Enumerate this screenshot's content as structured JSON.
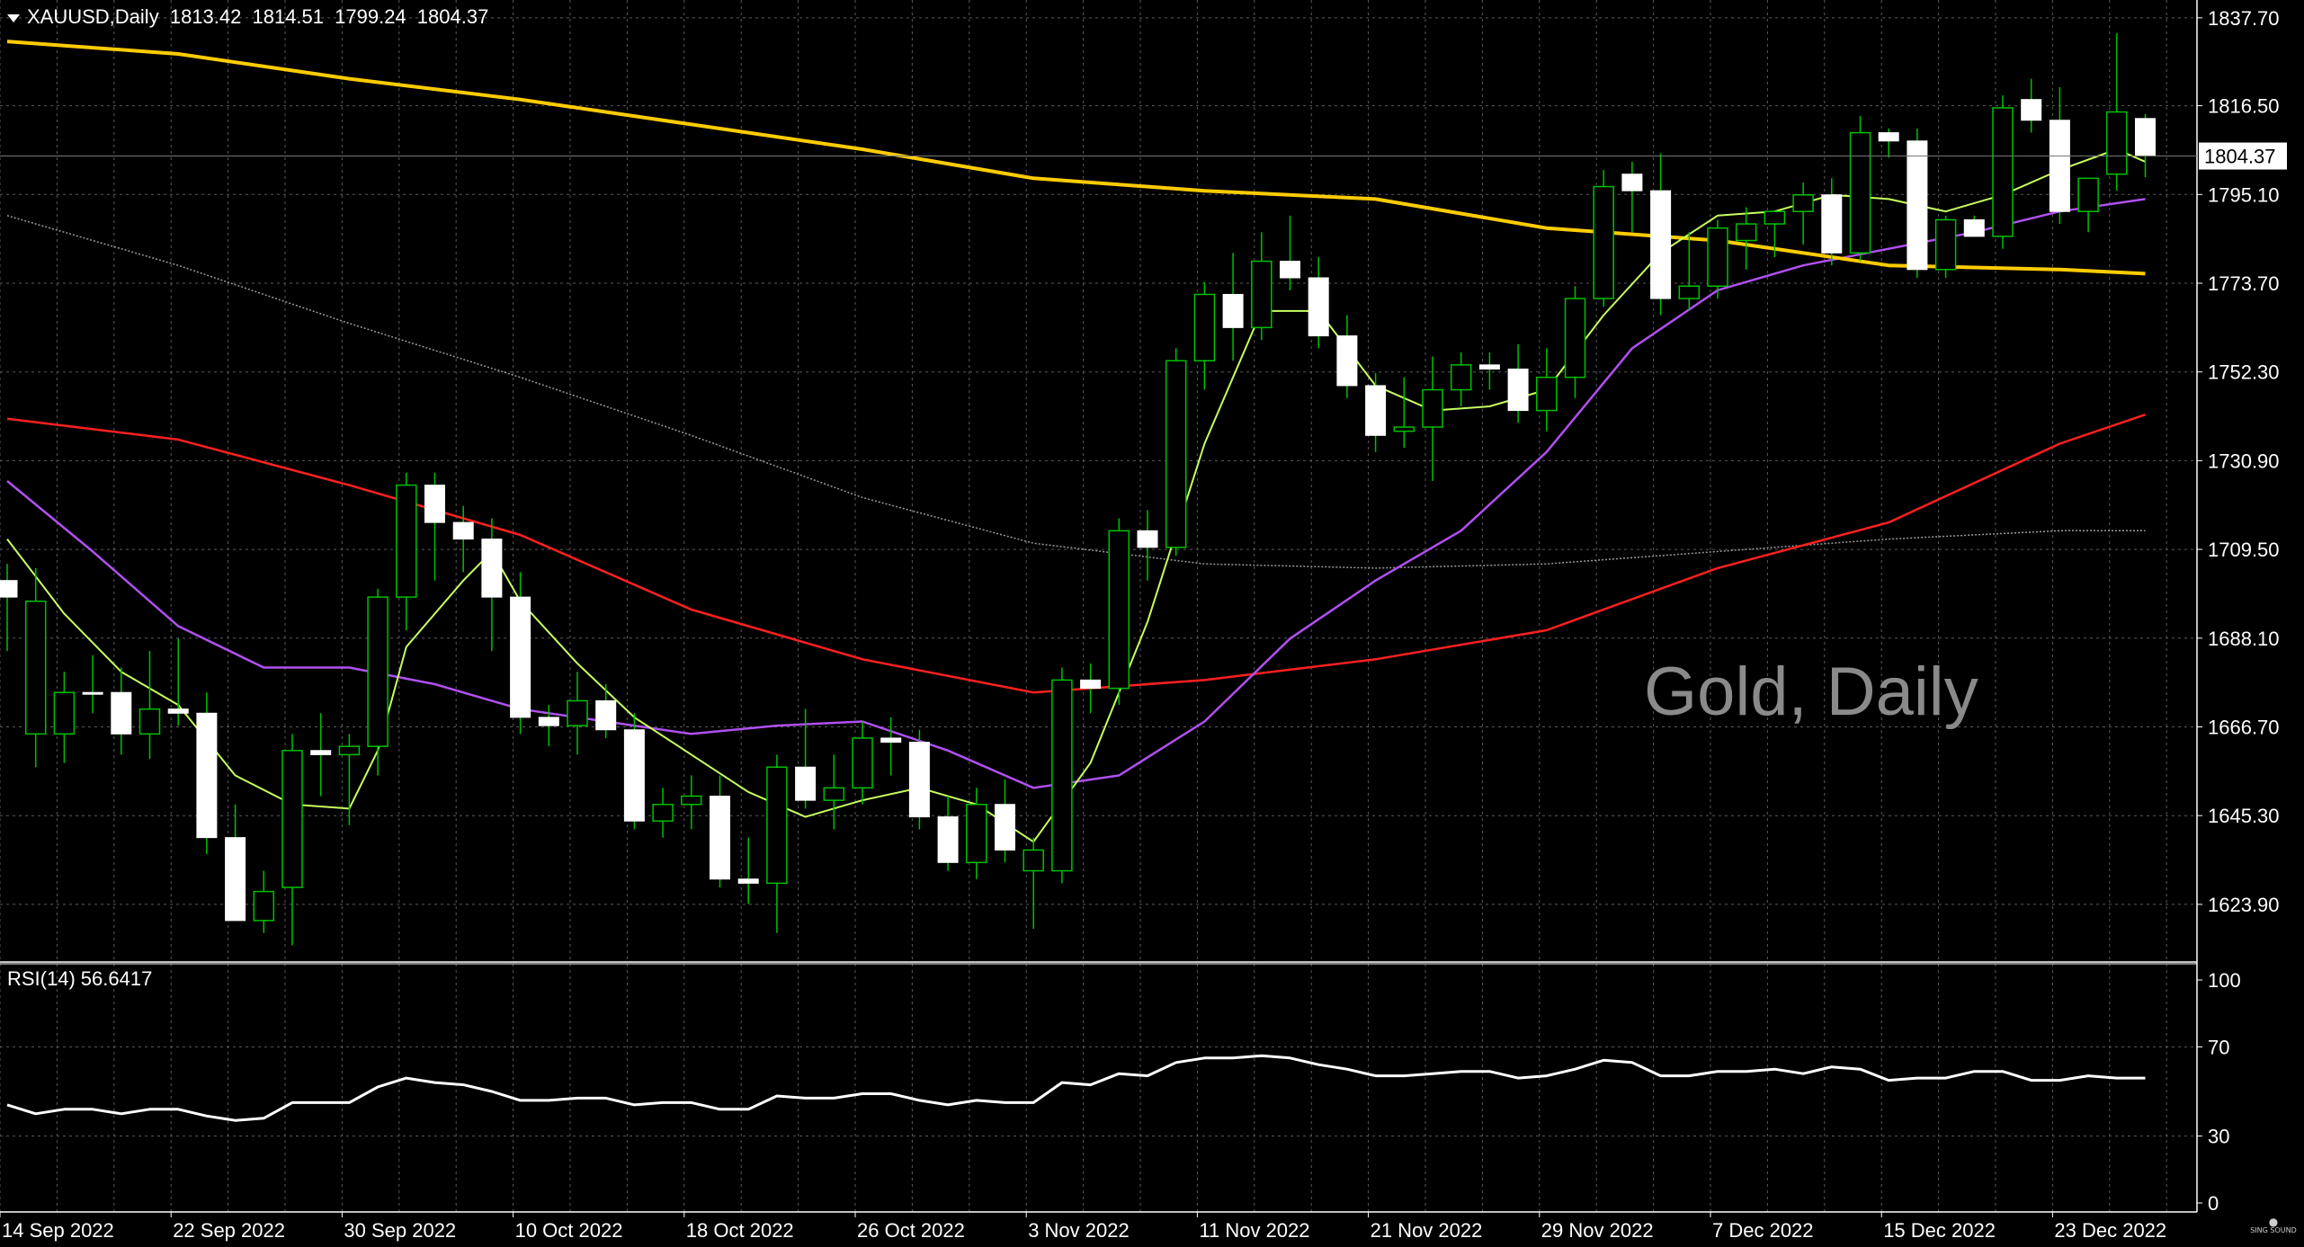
{
  "header": {
    "symbol": "XAUUSD,Daily",
    "open": "1813.42",
    "high": "1814.51",
    "low": "1799.24",
    "close": "1804.37"
  },
  "watermark": "Gold, Daily",
  "rsi": {
    "label": "RSI(14)",
    "value": "56.6417"
  },
  "logo_text": "SING SOUND",
  "colors": {
    "background": "#000000",
    "grid": "#5a5a5a",
    "bull_wick": "#00c000",
    "bear_body": "#ffffff",
    "ma_fast": "#c8ff60",
    "ma_20": "#b050f0",
    "ma_50": "#ff2020",
    "ma_100": "#9a9a9a",
    "ma_200": "#ffcc00",
    "rsi_line": "#ffffff"
  },
  "chart_data": [
    {
      "type": "candlestick",
      "title": "XAUUSD,Daily",
      "y_ticks": [
        1837.7,
        1816.5,
        1795.1,
        1773.7,
        1752.3,
        1730.9,
        1709.5,
        1688.1,
        1666.7,
        1645.3,
        1623.9
      ],
      "ylim": [
        1610.0,
        1842.0
      ],
      "current_price": "1804.37",
      "x_labels": [
        "14 Sep 2022",
        "22 Sep 2022",
        "30 Sep 2022",
        "10 Oct 2022",
        "18 Oct 2022",
        "26 Oct 2022",
        "3 Nov 2022",
        "11 Nov 2022",
        "21 Nov 2022",
        "29 Nov 2022",
        "7 Dec 2022",
        "15 Dec 2022",
        "23 Dec 2022"
      ],
      "x_label_index": [
        0,
        6,
        12,
        18,
        24,
        30,
        36,
        42,
        48,
        54,
        60,
        66,
        72
      ],
      "grid": true,
      "ohlc": [
        [
          1702.0,
          1706.0,
          1685.0,
          1698.0
        ],
        [
          1697.0,
          1705.0,
          1657.0,
          1665.0
        ],
        [
          1665.0,
          1680.0,
          1658.0,
          1675.0
        ],
        [
          1675.0,
          1684.0,
          1670.0,
          1675.0
        ],
        [
          1675.0,
          1681.0,
          1660.0,
          1665.0
        ],
        [
          1665.0,
          1685.0,
          1659.0,
          1671.0
        ],
        [
          1671.0,
          1688.0,
          1667.0,
          1670.0
        ],
        [
          1670.0,
          1675.0,
          1636.0,
          1640.0
        ],
        [
          1640.0,
          1648.0,
          1620.0,
          1620.0
        ],
        [
          1620.0,
          1632.0,
          1617.0,
          1627.0
        ],
        [
          1628.0,
          1665.0,
          1614.0,
          1661.0
        ],
        [
          1661.0,
          1670.0,
          1650.0,
          1660.0
        ],
        [
          1660.0,
          1665.0,
          1643.0,
          1662.0
        ],
        [
          1662.0,
          1700.0,
          1655.0,
          1698.0
        ],
        [
          1698.0,
          1728.0,
          1690.0,
          1725.0
        ],
        [
          1725.0,
          1728.0,
          1702.0,
          1716.0
        ],
        [
          1716.0,
          1720.0,
          1704.0,
          1712.0
        ],
        [
          1712.0,
          1717.0,
          1685.0,
          1698.0
        ],
        [
          1698.0,
          1704.0,
          1665.0,
          1669.0
        ],
        [
          1669.0,
          1672.0,
          1662.0,
          1667.0
        ],
        [
          1667.0,
          1680.0,
          1660.0,
          1673.0
        ],
        [
          1673.0,
          1677.0,
          1664.0,
          1666.0
        ],
        [
          1666.0,
          1670.0,
          1642.0,
          1644.0
        ],
        [
          1644.0,
          1652.0,
          1640.0,
          1648.0
        ],
        [
          1648.0,
          1655.0,
          1642.0,
          1650.0
        ],
        [
          1650.0,
          1655.0,
          1628.0,
          1630.0
        ],
        [
          1630.0,
          1640.0,
          1624.0,
          1629.0
        ],
        [
          1629.0,
          1660.0,
          1617.0,
          1657.0
        ],
        [
          1657.0,
          1671.0,
          1647.0,
          1649.0
        ],
        [
          1649.0,
          1660.0,
          1642.0,
          1652.0
        ],
        [
          1652.0,
          1668.0,
          1648.0,
          1664.0
        ],
        [
          1664.0,
          1669.0,
          1655.0,
          1663.0
        ],
        [
          1663.0,
          1666.0,
          1642.0,
          1645.0
        ],
        [
          1645.0,
          1650.0,
          1632.0,
          1634.0
        ],
        [
          1634.0,
          1652.0,
          1630.0,
          1648.0
        ],
        [
          1648.0,
          1654.0,
          1634.0,
          1637.0
        ],
        [
          1637.0,
          1640.0,
          1618.0,
          1632.0
        ],
        [
          1632.0,
          1681.0,
          1629.0,
          1678.0
        ],
        [
          1678.0,
          1682.0,
          1670.0,
          1676.0
        ],
        [
          1676.0,
          1717.0,
          1672.0,
          1714.0
        ],
        [
          1714.0,
          1719.0,
          1702.0,
          1710.0
        ],
        [
          1710.0,
          1758.0,
          1708.0,
          1755.0
        ],
        [
          1755.0,
          1774.0,
          1748.0,
          1771.0
        ],
        [
          1771.0,
          1781.0,
          1755.0,
          1763.0
        ],
        [
          1763.0,
          1786.0,
          1760.0,
          1779.0
        ],
        [
          1779.0,
          1790.0,
          1772.0,
          1775.0
        ],
        [
          1775.0,
          1780.0,
          1758.0,
          1761.0
        ],
        [
          1761.0,
          1766.0,
          1746.0,
          1749.0
        ],
        [
          1749.0,
          1752.0,
          1733.0,
          1737.0
        ],
        [
          1738.0,
          1751.0,
          1734.0,
          1739.0
        ],
        [
          1739.0,
          1756.0,
          1726.0,
          1748.0
        ],
        [
          1748.0,
          1757.0,
          1744.0,
          1754.0
        ],
        [
          1754.0,
          1757.0,
          1748.0,
          1753.0
        ],
        [
          1753.0,
          1759.0,
          1740.0,
          1743.0
        ],
        [
          1743.0,
          1758.0,
          1738.0,
          1751.0
        ],
        [
          1751.0,
          1773.0,
          1746.0,
          1770.0
        ],
        [
          1770.0,
          1801.0,
          1768.0,
          1797.0
        ],
        [
          1800.0,
          1803.0,
          1786.0,
          1796.0
        ],
        [
          1796.0,
          1805.0,
          1766.0,
          1770.0
        ],
        [
          1770.0,
          1786.0,
          1767.0,
          1773.0
        ],
        [
          1773.0,
          1789.0,
          1770.0,
          1787.0
        ],
        [
          1784.0,
          1792.0,
          1777.0,
          1788.0
        ],
        [
          1788.0,
          1791.0,
          1780.0,
          1791.0
        ],
        [
          1791.0,
          1798.0,
          1783.0,
          1795.0
        ],
        [
          1795.0,
          1799.0,
          1778.0,
          1781.0
        ],
        [
          1781.0,
          1814.0,
          1779.0,
          1810.0
        ],
        [
          1810.0,
          1811.0,
          1804.0,
          1808.0
        ],
        [
          1808.0,
          1811.0,
          1775.0,
          1777.0
        ],
        [
          1777.0,
          1790.0,
          1775.0,
          1789.0
        ],
        [
          1789.0,
          1790.0,
          1786.0,
          1785.0
        ],
        [
          1785.0,
          1819.0,
          1782.0,
          1816.0
        ],
        [
          1818.0,
          1823.0,
          1810.0,
          1813.0
        ],
        [
          1813.0,
          1821.0,
          1788.0,
          1791.0
        ],
        [
          1791.0,
          1799.0,
          1786.0,
          1799.0
        ],
        [
          1800.0,
          1834.0,
          1796.0,
          1815.0
        ],
        [
          1813.42,
          1814.51,
          1799.24,
          1804.37
        ]
      ],
      "bull_indices": [
        1,
        2,
        5,
        9,
        10,
        12,
        13,
        14,
        20,
        23,
        24,
        27,
        29,
        30,
        34,
        36,
        37,
        39,
        41,
        42,
        44,
        49,
        50,
        51,
        54,
        55,
        56,
        59,
        60,
        61,
        62,
        63,
        65,
        68,
        70,
        73,
        74
      ],
      "ma_200": [
        [
          0,
          1832
        ],
        [
          6,
          1829
        ],
        [
          12,
          1823
        ],
        [
          18,
          1818
        ],
        [
          24,
          1812
        ],
        [
          30,
          1806
        ],
        [
          36,
          1799
        ],
        [
          42,
          1796
        ],
        [
          48,
          1794
        ],
        [
          54,
          1787
        ],
        [
          60,
          1784
        ],
        [
          66,
          1778
        ],
        [
          72,
          1777
        ],
        [
          75,
          1776
        ]
      ],
      "ma_100": [
        [
          0,
          1790
        ],
        [
          6,
          1778
        ],
        [
          12,
          1764
        ],
        [
          18,
          1751
        ],
        [
          24,
          1737
        ],
        [
          30,
          1722
        ],
        [
          36,
          1711
        ],
        [
          42,
          1706
        ],
        [
          48,
          1705
        ],
        [
          54,
          1706
        ],
        [
          60,
          1709
        ],
        [
          66,
          1712
        ],
        [
          72,
          1714
        ],
        [
          75,
          1714
        ]
      ],
      "ma_50": [
        [
          0,
          1741
        ],
        [
          6,
          1736
        ],
        [
          12,
          1725
        ],
        [
          18,
          1713
        ],
        [
          24,
          1695
        ],
        [
          30,
          1683
        ],
        [
          36,
          1675
        ],
        [
          42,
          1678
        ],
        [
          48,
          1683
        ],
        [
          54,
          1690
        ],
        [
          60,
          1705
        ],
        [
          66,
          1716
        ],
        [
          72,
          1735
        ],
        [
          75,
          1742
        ]
      ],
      "ma_20": [
        [
          0,
          1726
        ],
        [
          3,
          1709
        ],
        [
          6,
          1691
        ],
        [
          9,
          1681
        ],
        [
          12,
          1681
        ],
        [
          15,
          1677
        ],
        [
          18,
          1671
        ],
        [
          21,
          1668
        ],
        [
          24,
          1665
        ],
        [
          27,
          1667
        ],
        [
          30,
          1668
        ],
        [
          33,
          1661
        ],
        [
          36,
          1652
        ],
        [
          39,
          1655
        ],
        [
          42,
          1668
        ],
        [
          45,
          1688
        ],
        [
          48,
          1702
        ],
        [
          51,
          1714
        ],
        [
          54,
          1733
        ],
        [
          57,
          1758
        ],
        [
          60,
          1772
        ],
        [
          63,
          1778
        ],
        [
          66,
          1782
        ],
        [
          69,
          1786
        ],
        [
          72,
          1791
        ],
        [
          75,
          1794
        ]
      ],
      "ma_fast": [
        [
          0,
          1712
        ],
        [
          2,
          1694
        ],
        [
          4,
          1680
        ],
        [
          6,
          1672
        ],
        [
          8,
          1655
        ],
        [
          10,
          1648
        ],
        [
          12,
          1647
        ],
        [
          13,
          1661
        ],
        [
          14,
          1686
        ],
        [
          16,
          1702
        ],
        [
          17,
          1709
        ],
        [
          18,
          1697
        ],
        [
          20,
          1682
        ],
        [
          22,
          1669
        ],
        [
          24,
          1660
        ],
        [
          26,
          1651
        ],
        [
          28,
          1645
        ],
        [
          30,
          1649
        ],
        [
          32,
          1652
        ],
        [
          34,
          1648
        ],
        [
          36,
          1639
        ],
        [
          38,
          1658
        ],
        [
          40,
          1692
        ],
        [
          42,
          1735
        ],
        [
          44,
          1767
        ],
        [
          46,
          1767
        ],
        [
          48,
          1749
        ],
        [
          50,
          1743
        ],
        [
          52,
          1744
        ],
        [
          54,
          1748
        ],
        [
          56,
          1766
        ],
        [
          58,
          1781
        ],
        [
          60,
          1790
        ],
        [
          62,
          1791
        ],
        [
          64,
          1795
        ],
        [
          66,
          1794
        ],
        [
          68,
          1791
        ],
        [
          70,
          1795
        ],
        [
          72,
          1801
        ],
        [
          74,
          1806
        ],
        [
          75,
          1803
        ]
      ]
    },
    {
      "type": "line",
      "title": "RSI(14) 56.6417",
      "y_ticks": [
        100,
        70,
        30,
        0
      ],
      "ylim": [
        0,
        100
      ],
      "values": [
        44,
        40,
        42,
        42,
        40,
        42,
        42,
        39,
        37,
        38,
        45,
        45,
        45,
        52,
        56,
        54,
        53,
        50,
        46,
        46,
        47,
        47,
        44,
        45,
        45,
        42,
        42,
        48,
        47,
        47,
        49,
        49,
        46,
        44,
        46,
        45,
        45,
        54,
        53,
        58,
        57,
        63,
        65,
        65,
        66,
        65,
        62,
        60,
        57,
        57,
        58,
        59,
        59,
        56,
        57,
        60,
        64,
        63,
        57,
        57,
        59,
        59,
        60,
        58,
        61,
        60,
        55,
        56,
        56,
        59,
        59,
        55,
        55,
        57,
        56,
        56
      ]
    }
  ]
}
